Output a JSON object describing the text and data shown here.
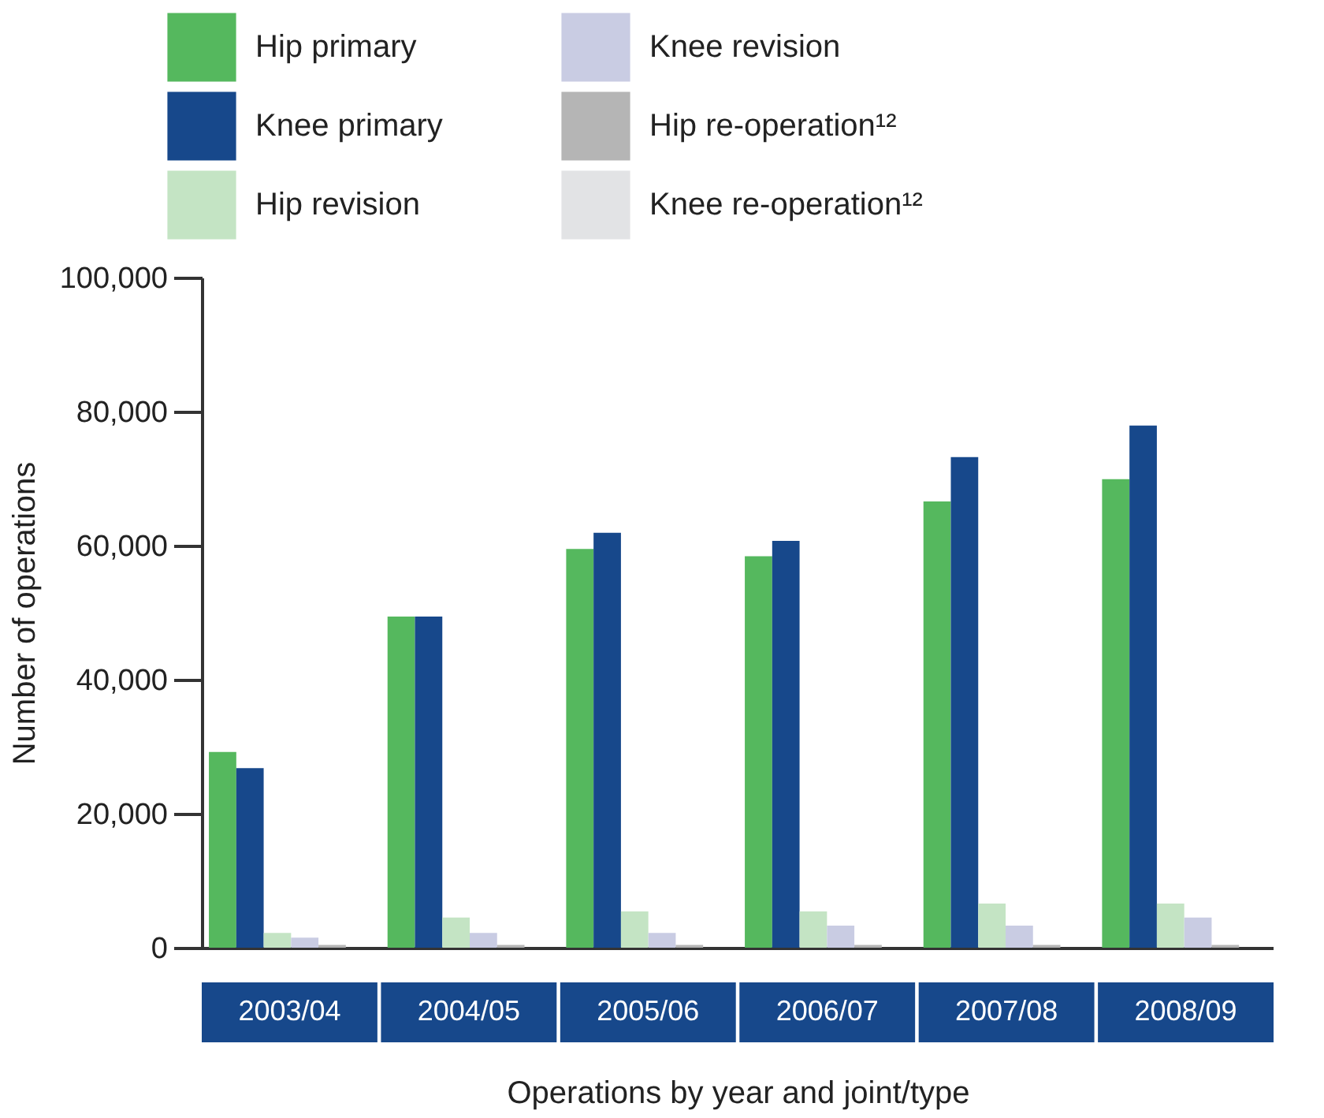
{
  "chart_data": {
    "type": "bar",
    "xlabel": "Operations by year and joint/type",
    "ylabel": "Number of operations",
    "categories": [
      "2003/04",
      "2004/05",
      "2005/06",
      "2006/07",
      "2007/08",
      "2008/09"
    ],
    "series": [
      {
        "name": "Hip primary",
        "color": "#55b85e",
        "values": [
          29200,
          49400,
          59500,
          58400,
          66600,
          69900
        ]
      },
      {
        "name": "Knee primary",
        "color": "#17488b",
        "values": [
          26800,
          49400,
          61900,
          60700,
          73200,
          77900
        ]
      },
      {
        "name": "Hip revision",
        "color": "#c4e4c4",
        "values": [
          2200,
          4500,
          5400,
          5400,
          6600,
          6600
        ]
      },
      {
        "name": "Knee revision",
        "color": "#c9cce3",
        "values": [
          1500,
          2200,
          2200,
          3300,
          3300,
          4500
        ]
      },
      {
        "name": "Hip re-operation¹²",
        "color": "#b5b5b5",
        "values": [
          400,
          400,
          400,
          400,
          400,
          400
        ]
      },
      {
        "name": "Knee re-operation¹²",
        "color": "#e2e3e5",
        "values": [
          null,
          null,
          null,
          null,
          null,
          null
        ]
      }
    ],
    "ylim": [
      0,
      100000
    ],
    "yticks": [
      {
        "value": 0,
        "label": "0"
      },
      {
        "value": 20000,
        "label": "20,000"
      },
      {
        "value": 40000,
        "label": "40,000"
      },
      {
        "value": 60000,
        "label": "60,000"
      },
      {
        "value": 80000,
        "label": "80,000"
      },
      {
        "value": 100000,
        "label": "100,000"
      }
    ],
    "grid": false,
    "legend": "top"
  }
}
